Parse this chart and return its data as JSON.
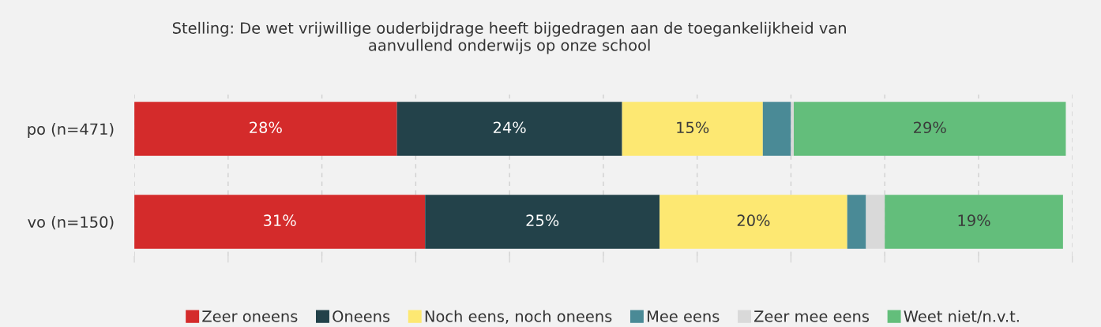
{
  "chart_data": {
    "type": "bar",
    "orientation": "horizontal",
    "stacked": true,
    "title": "Stelling: De wet vrijwillige ouderbijdrage heeft bijgedragen aan de toegankelijkheid van\naanvullend onderwijs op onze school",
    "categories": [
      "po (n=471)",
      "vo (n=150)"
    ],
    "series": [
      {
        "name": "Zeer oneens",
        "color": "#d42b2b",
        "values": [
          28,
          31
        ],
        "value_labels": [
          "28%",
          "31%"
        ]
      },
      {
        "name": "Oneens",
        "color": "#23424a",
        "values": [
          24,
          25
        ],
        "value_labels": [
          "24%",
          "25%"
        ]
      },
      {
        "name": "Noch eens, noch oneens",
        "color": "#fde872",
        "values": [
          15,
          20
        ],
        "value_labels": [
          "15%",
          "20%"
        ]
      },
      {
        "name": "Mee eens",
        "color": "#4a8a96",
        "values": [
          3,
          2
        ],
        "value_labels": [
          null,
          null
        ]
      },
      {
        "name": "Zeer mee eens",
        "color": "#d9d9d9",
        "values": [
          0.3,
          2
        ],
        "value_labels": [
          null,
          null
        ]
      },
      {
        "name": "Weet niet/n.v.t.",
        "color": "#63be7b",
        "values": [
          29,
          19
        ],
        "value_labels": [
          "29%",
          "19%"
        ]
      }
    ],
    "xlim": [
      0,
      100
    ],
    "xticks": [
      {
        "value": 0,
        "label": null
      },
      {
        "value": 10,
        "label": null
      },
      {
        "value": 20,
        "label": null
      },
      {
        "value": 30,
        "label": null
      },
      {
        "value": 40,
        "label": null
      },
      {
        "value": 50,
        "label": null
      },
      {
        "value": 60,
        "label": null
      },
      {
        "value": 70,
        "label": null
      },
      {
        "value": 80,
        "label": null
      },
      {
        "value": 90,
        "label": null
      },
      {
        "value": 100,
        "label": null
      }
    ],
    "tick_labels": "y",
    "grid": "x",
    "legend": "bottom"
  }
}
